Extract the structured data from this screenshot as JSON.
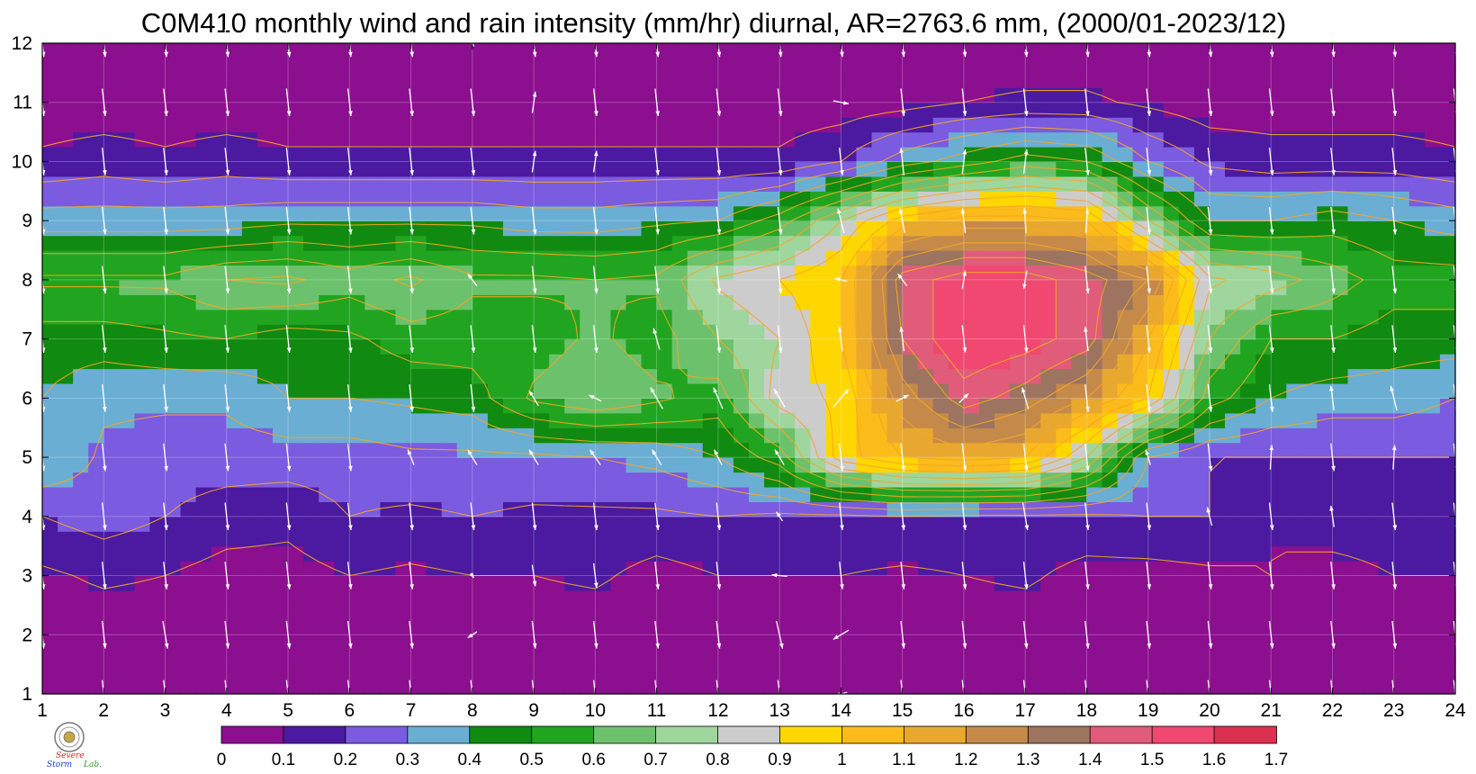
{
  "chart_data": {
    "type": "heatmap",
    "title": "C0M410 monthly wind and rain intensity (mm/hr) diurnal, AR=2763.6 mm, (2000/01-2023/12)",
    "xlabel": "",
    "ylabel": "",
    "xlim": [
      1,
      24
    ],
    "ylim": [
      1,
      12
    ],
    "x_ticks": [
      "1",
      "2",
      "3",
      "4",
      "5",
      "6",
      "7",
      "8",
      "9",
      "10",
      "11",
      "12",
      "13",
      "14",
      "15",
      "16",
      "17",
      "18",
      "19",
      "20",
      "21",
      "22",
      "23",
      "24"
    ],
    "y_ticks": [
      "1",
      "2",
      "3",
      "4",
      "5",
      "6",
      "7",
      "8",
      "9",
      "10",
      "11",
      "12"
    ],
    "grid": true,
    "x": [
      1,
      2,
      3,
      4,
      5,
      6,
      7,
      8,
      9,
      10,
      11,
      12,
      13,
      14,
      15,
      16,
      17,
      18,
      19,
      20,
      21,
      22,
      23,
      24
    ],
    "y": [
      1,
      2,
      3,
      4,
      5,
      6,
      7,
      8,
      9,
      10,
      11,
      12
    ],
    "z": [
      [
        0.02,
        0.02,
        0.02,
        0.02,
        0.02,
        0.02,
        0.02,
        0.02,
        0.02,
        0.02,
        0.02,
        0.02,
        0.02,
        0.02,
        0.02,
        0.02,
        0.02,
        0.02,
        0.02,
        0.02,
        0.02,
        0.02,
        0.02,
        0.02
      ],
      [
        0.03,
        0.03,
        0.03,
        0.03,
        0.03,
        0.03,
        0.03,
        0.03,
        0.03,
        0.03,
        0.03,
        0.03,
        0.03,
        0.03,
        0.03,
        0.03,
        0.03,
        0.03,
        0.03,
        0.03,
        0.03,
        0.03,
        0.03,
        0.03
      ],
      [
        0.08,
        0.12,
        0.1,
        0.06,
        0.06,
        0.1,
        0.08,
        0.1,
        0.1,
        0.12,
        0.06,
        0.1,
        0.1,
        0.1,
        0.08,
        0.1,
        0.12,
        0.06,
        0.06,
        0.08,
        0.1,
        0.08,
        0.1,
        0.1
      ],
      [
        0.2,
        0.25,
        0.2,
        0.15,
        0.13,
        0.2,
        0.18,
        0.2,
        0.18,
        0.18,
        0.18,
        0.2,
        0.18,
        0.18,
        0.2,
        0.18,
        0.18,
        0.18,
        0.2,
        0.2,
        0.1,
        0.13,
        0.13,
        0.1
      ],
      [
        0.4,
        0.28,
        0.25,
        0.25,
        0.25,
        0.25,
        0.28,
        0.28,
        0.28,
        0.3,
        0.33,
        0.4,
        0.55,
        0.95,
        1.1,
        1.15,
        1.1,
        0.8,
        0.3,
        0.2,
        0.2,
        0.2,
        0.2,
        0.2
      ],
      [
        0.4,
        0.32,
        0.32,
        0.32,
        0.4,
        0.4,
        0.42,
        0.45,
        0.62,
        0.68,
        0.62,
        0.55,
        0.85,
        0.92,
        1.25,
        1.45,
        1.35,
        1.2,
        1.0,
        0.55,
        0.4,
        0.35,
        0.35,
        0.3
      ],
      [
        0.45,
        0.45,
        0.48,
        0.5,
        0.45,
        0.48,
        0.55,
        0.55,
        0.55,
        0.62,
        0.55,
        0.7,
        0.8,
        1.0,
        1.4,
        1.6,
        1.55,
        1.45,
        1.1,
        0.7,
        0.5,
        0.5,
        0.45,
        0.45
      ],
      [
        0.62,
        0.62,
        0.62,
        0.7,
        0.72,
        0.65,
        0.72,
        0.62,
        0.62,
        0.6,
        0.62,
        0.82,
        0.9,
        1.0,
        1.45,
        1.55,
        1.55,
        1.45,
        1.3,
        0.82,
        0.75,
        0.65,
        0.55,
        0.55
      ],
      [
        0.35,
        0.35,
        0.35,
        0.35,
        0.38,
        0.38,
        0.38,
        0.38,
        0.35,
        0.35,
        0.38,
        0.4,
        0.55,
        0.8,
        1.05,
        1.15,
        1.15,
        1.1,
        0.7,
        0.4,
        0.4,
        0.45,
        0.4,
        0.35
      ],
      [
        0.12,
        0.15,
        0.12,
        0.15,
        0.12,
        0.12,
        0.12,
        0.12,
        0.12,
        0.12,
        0.12,
        0.12,
        0.12,
        0.2,
        0.35,
        0.45,
        0.55,
        0.5,
        0.3,
        0.18,
        0.15,
        0.15,
        0.15,
        0.12
      ],
      [
        0.04,
        0.04,
        0.04,
        0.04,
        0.04,
        0.04,
        0.04,
        0.04,
        0.04,
        0.04,
        0.04,
        0.04,
        0.04,
        0.04,
        0.06,
        0.1,
        0.12,
        0.12,
        0.08,
        0.04,
        0.04,
        0.04,
        0.04,
        0.04
      ],
      [
        0.02,
        0.02,
        0.02,
        0.02,
        0.02,
        0.02,
        0.02,
        0.02,
        0.02,
        0.02,
        0.02,
        0.02,
        0.02,
        0.02,
        0.02,
        0.02,
        0.02,
        0.02,
        0.02,
        0.02,
        0.02,
        0.02,
        0.02,
        0.02
      ]
    ],
    "levels": [
      0,
      0.1,
      0.2,
      0.3,
      0.4,
      0.5,
      0.6,
      0.7,
      0.8,
      0.9,
      1,
      1.1,
      1.2,
      1.3,
      1.4,
      1.5,
      1.6,
      1.7
    ],
    "level_labels": [
      "0",
      "0.1",
      "0.2",
      "0.3",
      "0.4",
      "0.5",
      "0.6",
      "0.7",
      "0.8",
      "0.9",
      "1",
      "1.1",
      "1.2",
      "1.3",
      "1.4",
      "1.5",
      "1.6",
      "1.7"
    ],
    "colors": [
      "#8b0f8e",
      "#4b1aa0",
      "#7b5be0",
      "#6aaed4",
      "#108a10",
      "#21a521",
      "#6cc26c",
      "#9ed69e",
      "#cccccc",
      "#ffd700",
      "#fbbb1a",
      "#e8a830",
      "#c58a4a",
      "#9c7460",
      "#e05c7a",
      "#f04870",
      "#dc3050"
    ],
    "contour_color": "#f5a623",
    "wind_u": [
      [
        0.1,
        0.1,
        0.1,
        0.1,
        0.1,
        0.1,
        0.1,
        0.1,
        0.1,
        0.1,
        0.1,
        0.1,
        0.1,
        -0.4,
        0.1,
        0.1,
        0.1,
        0.1,
        0.1,
        0.1,
        0.1,
        0.1,
        0.1,
        0.1
      ],
      [
        0.1,
        0.1,
        0.15,
        0.1,
        0.1,
        0.1,
        0.1,
        -0.3,
        0.1,
        0.1,
        0.1,
        0.1,
        0.2,
        -0.5,
        0.1,
        0.1,
        0.1,
        0.1,
        0.1,
        0.1,
        0.1,
        0.1,
        0.1,
        0.1
      ],
      [
        0.1,
        0.1,
        0.1,
        0.1,
        0.1,
        0.1,
        0.1,
        0.1,
        0.1,
        0.1,
        0.1,
        0.1,
        -0.5,
        0.1,
        0.1,
        0.1,
        0.1,
        0.1,
        0.1,
        0.1,
        0.1,
        0.1,
        0.1,
        0.1
      ],
      [
        0.1,
        0.1,
        0.1,
        0.1,
        0.1,
        0.1,
        0.1,
        0.1,
        0.1,
        0.1,
        0.1,
        0.1,
        -0.2,
        0.1,
        0.1,
        0.1,
        0.15,
        0.1,
        0.1,
        -0.15,
        0.1,
        -0.1,
        0.1,
        0.1
      ],
      [
        0.1,
        0.1,
        0.1,
        0.1,
        0.1,
        0.1,
        -0.2,
        -0.3,
        -0.3,
        -0.35,
        -0.3,
        -0.25,
        -0.3,
        0.1,
        0.1,
        0.1,
        0.1,
        0.1,
        -0.15,
        0.1,
        0.05,
        0.1,
        0.05,
        0.1
      ],
      [
        0.1,
        0.1,
        0.1,
        0.1,
        0.1,
        0.1,
        0.1,
        0.1,
        -0.3,
        -0.4,
        -0.4,
        -0.3,
        -0.35,
        0.5,
        0.4,
        0.3,
        -0.2,
        0.1,
        0.1,
        0.1,
        0.1,
        -0.1,
        -0.2,
        0.1
      ],
      [
        0.1,
        0.1,
        0.1,
        0.1,
        0.1,
        0.1,
        0.1,
        0.1,
        0.1,
        0.1,
        -0.2,
        0.1,
        0.1,
        -0.1,
        -0.1,
        0.1,
        0.1,
        -0.1,
        0.1,
        0.1,
        0.1,
        0.1,
        0.1,
        0.1
      ],
      [
        0.1,
        0.1,
        0.1,
        0.1,
        0.1,
        0.1,
        0.1,
        -0.3,
        0.1,
        0.1,
        0.1,
        0.1,
        0.1,
        -0.4,
        -0.3,
        0.1,
        -0.1,
        0.1,
        0.1,
        0.1,
        0.1,
        0.1,
        0.1,
        0.1
      ],
      [
        0.1,
        0.1,
        0.1,
        0.1,
        0.1,
        0.1,
        0.1,
        0.1,
        0.1,
        0.1,
        0.1,
        0.1,
        0.1,
        -0.2,
        -0.15,
        -0.1,
        -0.05,
        0.05,
        0.1,
        0.1,
        0.1,
        0.1,
        0.1,
        0.1
      ],
      [
        0.1,
        0.1,
        0.1,
        0.1,
        0.1,
        0.1,
        0.1,
        0.1,
        0.1,
        0.1,
        0.1,
        0.1,
        0.1,
        0.1,
        -0.1,
        0.1,
        0.1,
        0.1,
        0.1,
        0.1,
        0.1,
        0.1,
        0.1,
        0.1
      ],
      [
        0.1,
        0.1,
        0.1,
        0.1,
        0.1,
        0.1,
        0.1,
        0.1,
        0.1,
        0.1,
        0.1,
        0.1,
        0.1,
        0.5,
        0.1,
        0.1,
        0.1,
        0.1,
        0.1,
        0.1,
        0.1,
        0.1,
        0.1,
        0.1
      ],
      [
        0.1,
        0.1,
        0.1,
        0.1,
        0.1,
        0.1,
        0.1,
        0.1,
        0.1,
        0.1,
        0.1,
        0.1,
        0.1,
        0.1,
        0.1,
        0.1,
        0.1,
        0.1,
        0.1,
        0.1,
        0.1,
        0.1,
        0.1,
        0.1
      ]
    ],
    "wind_v": [
      [
        -0.9,
        -0.9,
        -0.9,
        -0.9,
        -0.9,
        -0.9,
        -0.9,
        -0.9,
        -0.9,
        -0.9,
        -0.9,
        -0.9,
        -0.9,
        -0.1,
        -0.9,
        -0.9,
        -0.9,
        -0.9,
        -0.9,
        -0.9,
        -0.9,
        -0.9,
        -0.9,
        -0.9
      ],
      [
        -0.9,
        -0.9,
        -0.9,
        -0.9,
        -0.9,
        -0.9,
        -0.9,
        -0.2,
        -0.9,
        -0.9,
        -0.9,
        -0.9,
        -0.9,
        -0.3,
        -0.9,
        -0.9,
        -0.9,
        -0.9,
        -0.9,
        -0.9,
        -0.9,
        -0.9,
        -0.9,
        -0.9
      ],
      [
        -0.9,
        -0.9,
        -0.9,
        -0.9,
        -0.9,
        -0.9,
        -0.9,
        -0.15,
        -0.7,
        -0.8,
        -0.9,
        -0.9,
        0.05,
        -0.9,
        -0.9,
        -0.9,
        -0.9,
        -0.9,
        -0.9,
        -0.9,
        -0.9,
        -0.9,
        -0.9,
        -0.9
      ],
      [
        -0.9,
        -0.9,
        -0.9,
        -0.9,
        -0.9,
        -0.9,
        -0.9,
        -0.9,
        -0.9,
        -0.9,
        -0.9,
        -0.9,
        0.3,
        -0.9,
        -0.9,
        -0.9,
        -0.9,
        -0.9,
        -0.9,
        0.6,
        -0.9,
        0.7,
        -0.9,
        -0.9
      ],
      [
        -0.9,
        -0.9,
        -0.9,
        -0.9,
        -0.9,
        -0.9,
        0.5,
        0.5,
        0.5,
        0.5,
        0.5,
        0.5,
        0.5,
        -0.9,
        -0.9,
        -0.9,
        -0.9,
        -0.9,
        0.5,
        -0.9,
        0.8,
        -0.9,
        0.8,
        -0.9
      ],
      [
        -0.9,
        -0.9,
        -0.9,
        -0.9,
        -0.9,
        -0.9,
        -0.9,
        -0.9,
        0.5,
        0.2,
        0.7,
        0.7,
        0.6,
        0.6,
        0.2,
        0.3,
        0.7,
        -0.9,
        -0.9,
        -0.9,
        -0.9,
        0.8,
        0.8,
        -0.9
      ],
      [
        -0.9,
        -0.9,
        -0.9,
        -0.9,
        -0.9,
        -0.9,
        -0.9,
        -0.9,
        -0.9,
        -0.9,
        0.7,
        -0.9,
        -0.9,
        0.8,
        0.8,
        -0.9,
        -0.9,
        0.8,
        -0.9,
        -0.9,
        -0.9,
        -0.9,
        -0.9,
        -0.9
      ],
      [
        -0.9,
        -0.9,
        -0.9,
        -0.9,
        -0.9,
        -0.9,
        -0.9,
        0.4,
        -0.9,
        -0.9,
        -0.9,
        -0.9,
        -0.9,
        0.1,
        0.4,
        0.6,
        -0.6,
        -0.9,
        -0.9,
        -0.9,
        -0.9,
        -0.9,
        -0.9,
        -0.9
      ],
      [
        -0.9,
        -0.9,
        -0.9,
        -0.9,
        -0.9,
        -0.9,
        -0.9,
        -0.9,
        -0.9,
        -0.9,
        -0.9,
        -0.9,
        -0.9,
        0.8,
        0.8,
        0.8,
        0.8,
        0.8,
        -0.9,
        -0.9,
        -0.9,
        -0.9,
        -0.9,
        -0.9
      ],
      [
        -0.9,
        -0.9,
        -0.9,
        -0.9,
        -0.9,
        -0.9,
        -0.9,
        -0.9,
        0.7,
        0.7,
        -0.9,
        -0.9,
        -0.9,
        -0.9,
        0.9,
        0.8,
        0.8,
        -0.9,
        -0.9,
        -0.9,
        -0.9,
        -0.9,
        -0.9,
        -0.9
      ],
      [
        -0.9,
        -0.9,
        -0.9,
        -0.9,
        -0.9,
        -0.9,
        -0.9,
        -0.9,
        0.7,
        -0.9,
        -0.9,
        -0.9,
        -0.9,
        -0.1,
        -0.9,
        -0.9,
        -0.9,
        -0.9,
        -0.9,
        -0.9,
        -0.9,
        -0.9,
        -0.9,
        -0.9
      ],
      [
        -0.9,
        -0.9,
        -0.9,
        -0.9,
        -0.9,
        -0.9,
        -0.9,
        -0.2,
        -0.9,
        -0.9,
        -0.9,
        -0.9,
        -0.9,
        -0.9,
        -0.9,
        -0.9,
        -0.9,
        -0.9,
        -0.9,
        -0.9,
        -0.9,
        -0.9,
        -0.9,
        -0.9
      ]
    ]
  },
  "logo": {
    "alt": "Severe Storm Lab",
    "line1": "Severe",
    "line2": "Storm",
    "line3": "Lab."
  }
}
